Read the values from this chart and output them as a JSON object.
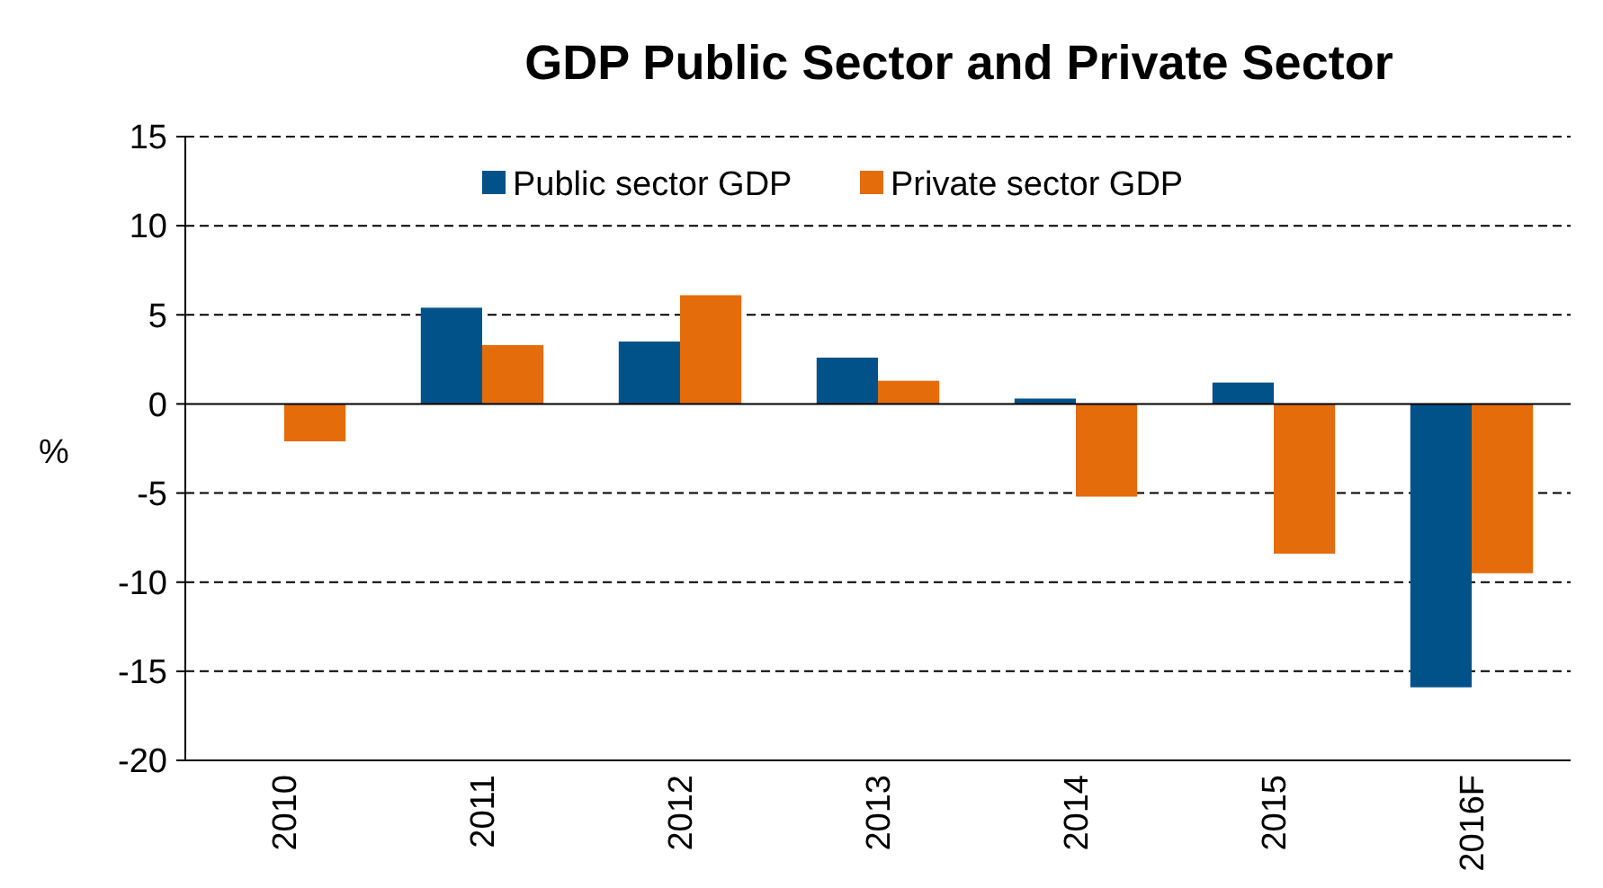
{
  "chart_data": {
    "type": "bar",
    "title": "GDP Public Sector and Private Sector",
    "ylabel": "%",
    "categories": [
      "2010",
      "2011",
      "2012",
      "2013",
      "2014",
      "2015",
      "2016F"
    ],
    "series": [
      {
        "name": "Public sector GDP",
        "color": "#005288",
        "values": [
          null,
          5.4,
          3.5,
          2.6,
          0.3,
          1.2,
          -15.9
        ]
      },
      {
        "name": "Private sector GDP",
        "color": "#e46c0a",
        "values": [
          -2.1,
          3.3,
          6.1,
          1.3,
          -5.2,
          -8.4,
          -9.5
        ]
      }
    ],
    "ylim": [
      -20,
      15
    ],
    "yticks": [
      -20,
      -15,
      -10,
      -5,
      0,
      5,
      10,
      15
    ],
    "grid": "y",
    "legend": "top"
  }
}
